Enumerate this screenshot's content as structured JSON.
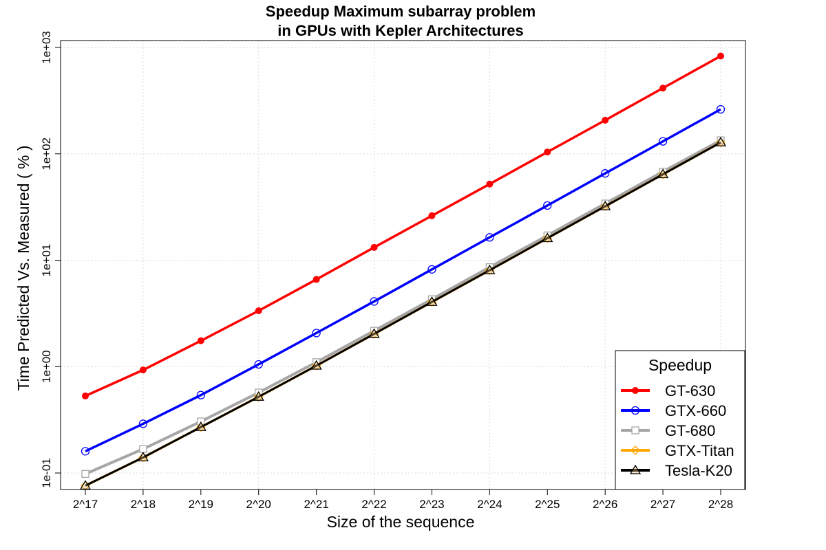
{
  "chart_data": {
    "type": "line",
    "title_line1": "Speedup Maximum subarray problem",
    "title_line2": "in GPUs with Kepler Architectures",
    "xlabel": "Size of the sequence",
    "ylabel": "Time Predicted Vs. Measured ( % )",
    "categories": [
      "2^17",
      "2^18",
      "2^19",
      "2^20",
      "2^21",
      "2^22",
      "2^23",
      "2^24",
      "2^25",
      "2^26",
      "2^27",
      "2^28"
    ],
    "y_scale": "log10",
    "ylim": [
      0.07,
      1200
    ],
    "y_ticks": [
      {
        "value": 0.1,
        "label": "1e-01"
      },
      {
        "value": 1,
        "label": "1e+00"
      },
      {
        "value": 10,
        "label": "1e+01"
      },
      {
        "value": 100,
        "label": "1e+02"
      },
      {
        "value": 1000,
        "label": "1e+03"
      }
    ],
    "grid": true,
    "legend": {
      "title": "Speedup",
      "placement": "bottom-right"
    },
    "series": [
      {
        "name": "GT-630",
        "color": "#ff0000",
        "marker": "filled-circle",
        "values": [
          0.53,
          0.93,
          1.75,
          3.35,
          6.6,
          13.2,
          26.2,
          52,
          104,
          207,
          415,
          830
        ]
      },
      {
        "name": "GTX-660",
        "color": "#0000ff",
        "marker": "open-circle",
        "values": [
          0.16,
          0.29,
          0.54,
          1.05,
          2.07,
          4.1,
          8.2,
          16.4,
          32.7,
          65.5,
          131,
          262
        ]
      },
      {
        "name": "GT-680",
        "color": "#a6a6a6",
        "marker": "open-square",
        "values": [
          0.098,
          0.168,
          0.305,
          0.57,
          1.1,
          2.17,
          4.3,
          8.6,
          17.1,
          34.1,
          68,
          134
        ]
      },
      {
        "name": "GTX-Titan",
        "color": "#ffa500",
        "marker": "open-diamond",
        "values": [
          0.076,
          0.14,
          0.27,
          0.52,
          1.02,
          2.03,
          4.05,
          8.05,
          16.1,
          32.1,
          64.2,
          128
        ]
      },
      {
        "name": "Tesla-K20",
        "color": "#000000",
        "marker": "open-triangle",
        "values": [
          0.076,
          0.14,
          0.27,
          0.52,
          1.02,
          2.03,
          4.05,
          8.05,
          16.1,
          32.1,
          64.2,
          128
        ]
      }
    ]
  }
}
